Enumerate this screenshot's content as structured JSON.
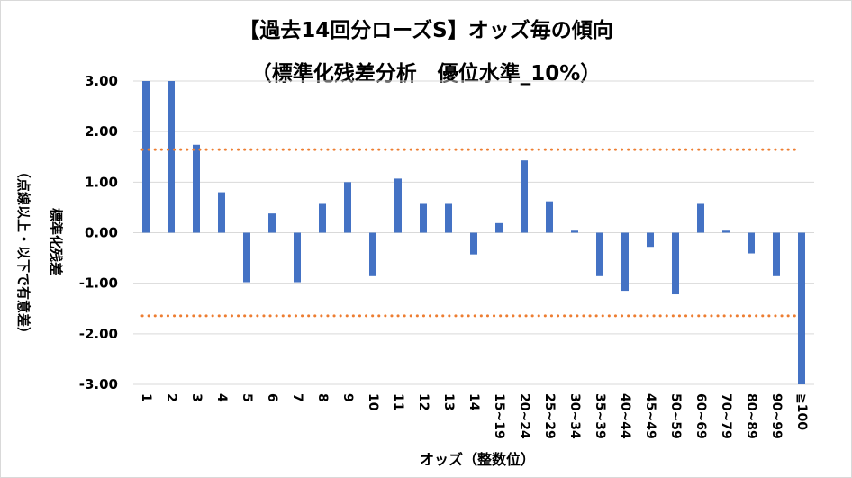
{
  "chart_data": {
    "type": "bar",
    "title": "【過去14回分ローズS】オッズ毎の傾向",
    "subtitle": "（標準化残差分析　優位水準_10%）",
    "xlabel": "オッズ（整数位）",
    "ylabel_main": "標準化残差",
    "ylabel_sub": "（点線以上・以下で有意差）",
    "ylim": [
      -3.0,
      3.0
    ],
    "yticks": [
      "3.00",
      "2.00",
      "1.00",
      "0.00",
      "-1.00",
      "-2.00",
      "-3.00"
    ],
    "ytick_values": [
      3,
      2,
      1,
      0,
      -1,
      -2,
      -3
    ],
    "categories": [
      "1",
      "2",
      "3",
      "4",
      "5",
      "6",
      "7",
      "8",
      "9",
      "10",
      "11",
      "12",
      "13",
      "14",
      "15~19",
      "20~24",
      "25~29",
      "30~34",
      "35~39",
      "40~44",
      "45~49",
      "50~59",
      "60~69",
      "70~79",
      "80~89",
      "90~99",
      "≧100"
    ],
    "values": [
      3.0,
      3.0,
      1.74,
      0.8,
      -0.98,
      0.38,
      -0.98,
      0.57,
      1.0,
      -0.86,
      1.07,
      0.57,
      0.57,
      -0.43,
      0.19,
      1.43,
      0.62,
      0.04,
      -0.86,
      -1.15,
      -0.28,
      -1.22,
      0.57,
      0.04,
      -0.41,
      -0.86,
      -3.0
    ],
    "threshold_lines": [
      1.645,
      -1.645
    ],
    "colors": {
      "bar": "#4472c4",
      "threshold": "#ed7d31",
      "grid": "#d9d9d9"
    },
    "grid": true,
    "legend": "none"
  }
}
